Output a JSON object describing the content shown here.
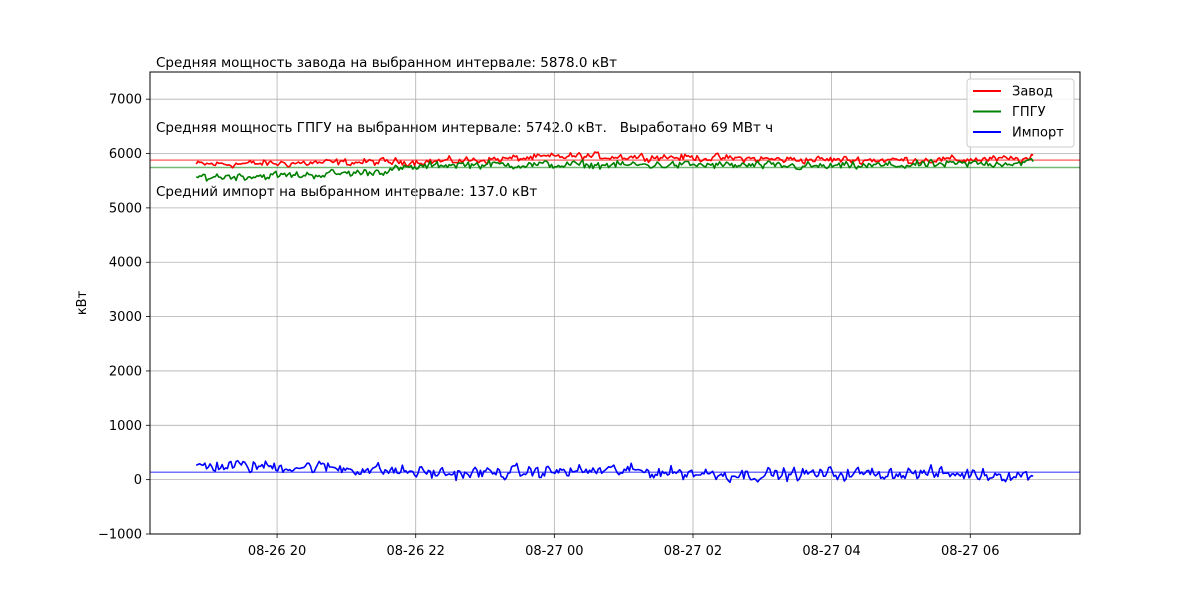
{
  "chart_data": {
    "type": "line",
    "title_lines": [
      "Средняя мощность завода на выбранном интервале: 5878.0 кВт",
      "Средняя мощность ГПГУ на выбранном интервале: 5742.0 кВт.   Выработано 69 МВт ч",
      "Средний импорт на выбранном интервале: 137.0 кВт"
    ],
    "xlabel": "",
    "ylabel": "кВт",
    "xlim": [
      "2023-08-26 18:10",
      "2023-08-27 07:35"
    ],
    "ylim": [
      -1000,
      7500
    ],
    "y_ticks": [
      -1000,
      0,
      1000,
      2000,
      3000,
      4000,
      5000,
      6000,
      7000
    ],
    "x_ticks": [
      {
        "t": "2023-08-26 20:00",
        "label": "08-26 20"
      },
      {
        "t": "2023-08-26 22:00",
        "label": "08-26 22"
      },
      {
        "t": "2023-08-27 00:00",
        "label": "08-27 00"
      },
      {
        "t": "2023-08-27 02:00",
        "label": "08-27 02"
      },
      {
        "t": "2023-08-27 04:00",
        "label": "08-27 04"
      },
      {
        "t": "2023-08-27 06:00",
        "label": "08-27 06"
      }
    ],
    "grid": true,
    "legend_position": "top-right",
    "x_start": "2023-08-26 18:50",
    "x_end": "2023-08-27 06:55",
    "sample_interval_min": 1.5,
    "series": [
      {
        "name": "Завод",
        "color": "#ff0000",
        "mean": 5878,
        "profile": [
          [
            0,
            5800
          ],
          [
            0.15,
            5830
          ],
          [
            0.3,
            5860
          ],
          [
            0.45,
            5950
          ],
          [
            0.55,
            5940
          ],
          [
            0.7,
            5890
          ],
          [
            0.85,
            5880
          ],
          [
            1,
            5900
          ]
        ],
        "noise": 110
      },
      {
        "name": "ГПГУ",
        "color": "#008000",
        "mean": 5742,
        "profile": [
          [
            0,
            5570
          ],
          [
            0.12,
            5600
          ],
          [
            0.2,
            5650
          ],
          [
            0.3,
            5800
          ],
          [
            0.45,
            5790
          ],
          [
            0.6,
            5790
          ],
          [
            0.75,
            5760
          ],
          [
            0.9,
            5800
          ],
          [
            1,
            5840
          ]
        ],
        "noise": 120
      },
      {
        "name": "Импорт",
        "color": "#0000ff",
        "mean": 137,
        "profile": [
          [
            0,
            260
          ],
          [
            0.15,
            230
          ],
          [
            0.3,
            110
          ],
          [
            0.5,
            170
          ],
          [
            0.65,
            90
          ],
          [
            0.85,
            120
          ],
          [
            1,
            80
          ]
        ],
        "noise": 190
      }
    ]
  }
}
